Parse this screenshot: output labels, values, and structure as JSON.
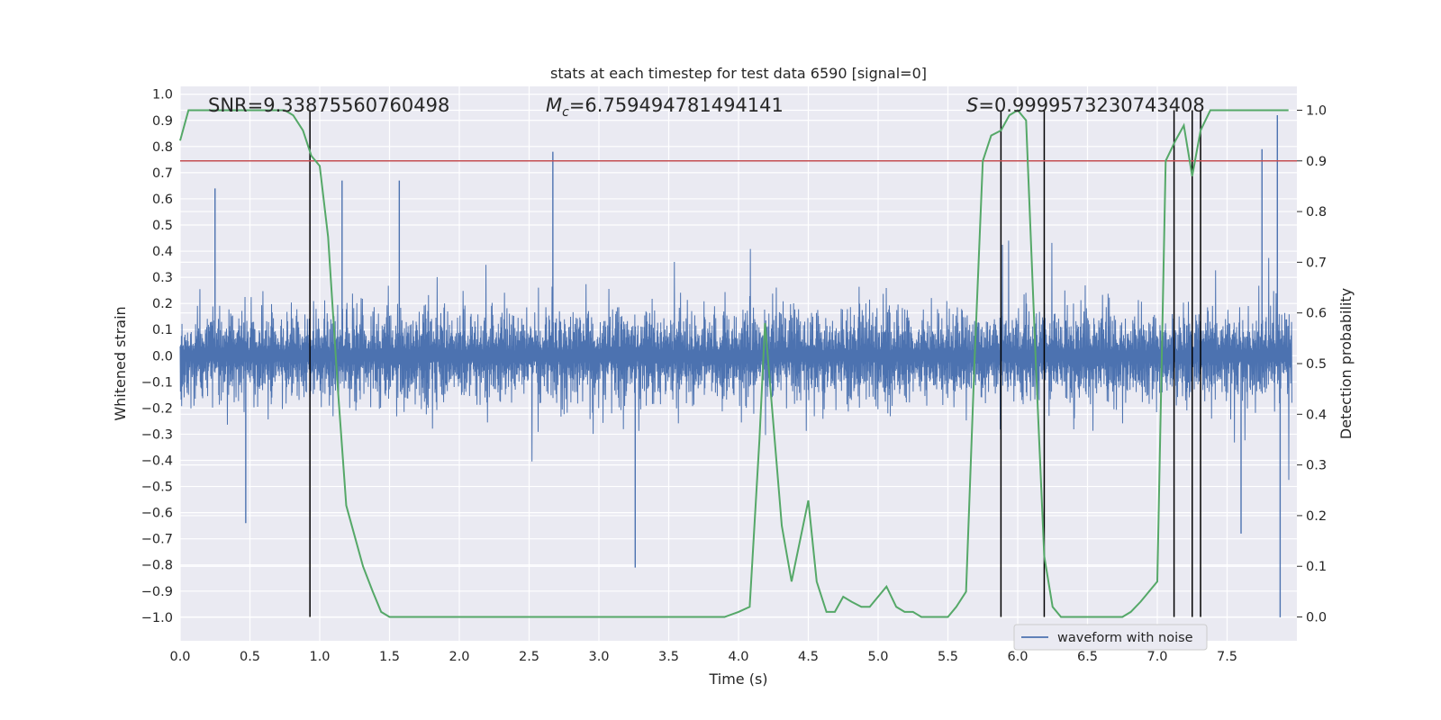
{
  "chart_data": {
    "type": "line",
    "title": "stats at each timestep for test data 6590 [signal=0]",
    "xlabel": "Time (s)",
    "ylabel": "Whitened strain",
    "y2label": "Detection probability",
    "xlim": [
      0.0,
      8.0
    ],
    "ylim": [
      -1.09,
      1.03
    ],
    "y2lim": [
      -0.047,
      1.047
    ],
    "x_ticks": [
      "0.0",
      "0.5",
      "1.0",
      "1.5",
      "2.0",
      "2.5",
      "3.0",
      "3.5",
      "4.0",
      "4.5",
      "5.0",
      "5.5",
      "6.0",
      "6.5",
      "7.0",
      "7.5"
    ],
    "y_ticks": [
      "1.0",
      "0.9",
      "0.8",
      "0.7",
      "0.6",
      "0.5",
      "0.4",
      "0.3",
      "0.2",
      "0.1",
      "0.0",
      "−0.1",
      "−0.2",
      "−0.3",
      "−0.4",
      "−0.5",
      "−0.6",
      "−0.7",
      "−0.8",
      "−0.9",
      "−1.0"
    ],
    "y2_ticks": [
      "1.0",
      "0.9",
      "0.8",
      "0.7",
      "0.6",
      "0.5",
      "0.4",
      "0.3",
      "0.2",
      "0.1",
      "0.0"
    ],
    "annotations": {
      "snr": "SNR=9.33875560760498",
      "mc_symbol": "M",
      "mc_sub": "c",
      "mc_value": "=6.759494781494141",
      "s_symbol": "S",
      "s_value": "=0.9999573230743408"
    },
    "legend": {
      "label": "waveform with noise",
      "position": "lower-right"
    },
    "threshold": {
      "axis": "detection probability",
      "value": 0.9,
      "color": "#c44e52"
    },
    "detection_lines_x": [
      0.93,
      5.88,
      6.19,
      7.12,
      7.25,
      7.31
    ],
    "waveform": {
      "name": "waveform with noise",
      "color": "#4c72b0",
      "n_samples": 16384,
      "typical_upper": 0.38,
      "typical_lower": -0.4,
      "extremes": [
        {
          "x": 0.47,
          "y": -0.64
        },
        {
          "x": 0.25,
          "y": 0.64
        },
        {
          "x": 1.16,
          "y": 0.67
        },
        {
          "x": 1.57,
          "y": 0.67
        },
        {
          "x": 2.67,
          "y": 0.78
        },
        {
          "x": 3.26,
          "y": -0.81
        },
        {
          "x": 4.31,
          "y": 0.12
        },
        {
          "x": 7.86,
          "y": 0.92
        },
        {
          "x": 7.88,
          "y": -1.0
        },
        {
          "x": 7.6,
          "y": -0.68
        },
        {
          "x": 7.75,
          "y": 0.79
        }
      ]
    },
    "series": [
      {
        "name": "detection probability",
        "color": "#55a868",
        "axis": "right",
        "x": [
          0.0,
          0.06,
          0.13,
          0.19,
          0.25,
          0.31,
          0.38,
          0.44,
          0.5,
          0.56,
          0.63,
          0.69,
          0.75,
          0.81,
          0.88,
          0.94,
          1.0,
          1.06,
          1.13,
          1.19,
          1.25,
          1.31,
          1.38,
          1.44,
          1.5,
          1.75,
          2.0,
          2.25,
          2.5,
          2.75,
          3.0,
          3.25,
          3.5,
          3.75,
          3.9,
          4.0,
          4.08,
          4.15,
          4.19,
          4.31,
          4.38,
          4.44,
          4.5,
          4.56,
          4.63,
          4.69,
          4.75,
          4.81,
          4.88,
          4.94,
          5.0,
          5.06,
          5.13,
          5.19,
          5.25,
          5.31,
          5.38,
          5.44,
          5.5,
          5.56,
          5.63,
          5.69,
          5.75,
          5.81,
          5.88,
          5.94,
          6.0,
          6.06,
          6.13,
          6.19,
          6.25,
          6.31,
          6.38,
          6.44,
          6.5,
          6.56,
          6.63,
          6.69,
          6.75,
          6.81,
          6.88,
          6.94,
          7.0,
          7.06,
          7.13,
          7.19,
          7.25,
          7.31,
          7.38,
          7.44,
          7.5,
          7.56,
          7.63,
          7.69,
          7.75,
          7.81,
          7.88,
          7.94
        ],
        "values": [
          0.94,
          1.0,
          1.0,
          1.0,
          1.0,
          1.0,
          1.0,
          1.0,
          1.0,
          1.0,
          1.0,
          1.0,
          1.0,
          0.99,
          0.96,
          0.91,
          0.89,
          0.75,
          0.45,
          0.22,
          0.16,
          0.1,
          0.05,
          0.01,
          0.0,
          0.0,
          0.0,
          0.0,
          0.0,
          0.0,
          0.0,
          0.0,
          0.0,
          0.0,
          0.0,
          0.01,
          0.02,
          0.35,
          0.58,
          0.18,
          0.07,
          0.15,
          0.23,
          0.07,
          0.01,
          0.01,
          0.04,
          0.03,
          0.02,
          0.02,
          0.04,
          0.06,
          0.02,
          0.01,
          0.01,
          0.0,
          0.0,
          0.0,
          0.0,
          0.02,
          0.05,
          0.5,
          0.9,
          0.95,
          0.96,
          0.99,
          1.0,
          0.98,
          0.5,
          0.12,
          0.02,
          0.0,
          0.0,
          0.0,
          0.0,
          0.0,
          0.0,
          0.0,
          0.0,
          0.01,
          0.03,
          0.05,
          0.07,
          0.9,
          0.94,
          0.97,
          0.87,
          0.96,
          1.0,
          1.0,
          1.0,
          1.0,
          1.0,
          1.0,
          1.0,
          1.0,
          1.0,
          1.0
        ]
      }
    ]
  }
}
